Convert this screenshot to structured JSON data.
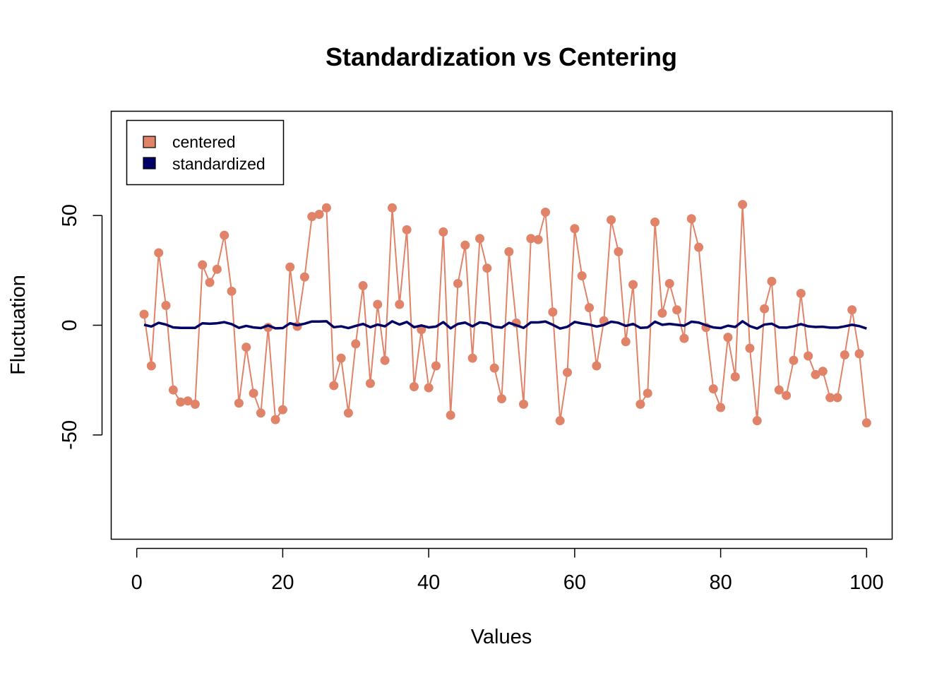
{
  "chart_data": {
    "type": "line",
    "title": "Standardization vs Centering",
    "xlabel": "Values",
    "ylabel": "Fluctuation",
    "xlim": [
      -3.5,
      103.5
    ],
    "ylim": [
      -97.5,
      97.5
    ],
    "x_ticks": [
      0,
      20,
      40,
      60,
      80,
      100
    ],
    "x_tick_labels": [
      "0",
      "20",
      "40",
      "60",
      "80",
      "100"
    ],
    "y_ticks": [
      -50,
      0,
      50
    ],
    "y_tick_labels": [
      "-50",
      "0",
      "50"
    ],
    "grid": false,
    "legend_position": "top-left",
    "legend": [
      {
        "label": "centered",
        "color": "#E08368"
      },
      {
        "label": "standardized",
        "color": "#000066"
      }
    ],
    "x": [
      1,
      2,
      3,
      4,
      5,
      6,
      7,
      8,
      9,
      10,
      11,
      12,
      13,
      14,
      15,
      16,
      17,
      18,
      19,
      20,
      21,
      22,
      23,
      24,
      25,
      26,
      27,
      28,
      29,
      30,
      31,
      32,
      33,
      34,
      35,
      36,
      37,
      38,
      39,
      40,
      41,
      42,
      43,
      44,
      45,
      46,
      47,
      48,
      49,
      50,
      51,
      52,
      53,
      54,
      55,
      56,
      57,
      58,
      59,
      60,
      61,
      62,
      63,
      64,
      65,
      66,
      67,
      68,
      69,
      70,
      71,
      72,
      73,
      74,
      75,
      76,
      77,
      78,
      79,
      80,
      81,
      82,
      83,
      84,
      85,
      86,
      87,
      88,
      89,
      90,
      91,
      92,
      93,
      94,
      95,
      96,
      97,
      98,
      99,
      100
    ],
    "series": [
      {
        "name": "centered",
        "color": "#E08368",
        "style": "line+points",
        "values": [
          5,
          -18.5,
          33,
          9,
          -29.5,
          -35,
          -34.5,
          -36,
          27.5,
          19.5,
          25.5,
          41,
          15.5,
          -35.5,
          -10,
          -31,
          -40,
          -1,
          -43,
          -38.5,
          26.5,
          -0.5,
          22,
          49.5,
          50.5,
          53.5,
          -27.5,
          -15,
          -40,
          -8.5,
          18,
          -26.5,
          9.5,
          -16,
          53.5,
          9.5,
          43.5,
          -28,
          -2,
          -28.5,
          -18.5,
          42.5,
          -41,
          19,
          36.5,
          -15,
          39.5,
          26,
          -19.5,
          -33.5,
          33.5,
          1,
          -36,
          39.5,
          39,
          51.5,
          6,
          -43.5,
          -21.5,
          44,
          22.5,
          8,
          -18.5,
          2,
          48,
          33.5,
          -7.5,
          18.5,
          -36,
          -31,
          47,
          5.5,
          19,
          7,
          -6,
          48.5,
          35.5,
          -1,
          -29,
          -37.5,
          -5.5,
          -23.5,
          55,
          -10.5,
          -43.5,
          7.5,
          20,
          -29.5,
          -32,
          -16,
          14.5,
          -14,
          -22.5,
          -21,
          -33,
          -33,
          -13.5,
          7,
          -13,
          -44.5
        ]
      },
      {
        "name": "standardized",
        "color": "#000066",
        "style": "line",
        "values": [
          0.2,
          -0.6,
          1.1,
          0.3,
          -1,
          -1.2,
          -1.2,
          -1.2,
          0.9,
          0.7,
          0.9,
          1.4,
          0.5,
          -1.2,
          -0.3,
          -1,
          -1.3,
          -0.1,
          -1.4,
          -1.3,
          0.9,
          0,
          0.7,
          1.7,
          1.7,
          1.8,
          -0.9,
          -0.5,
          -1.3,
          -0.3,
          0.6,
          -0.9,
          0.3,
          -0.5,
          1.8,
          0.3,
          1.5,
          -0.9,
          -0.1,
          -1,
          -0.6,
          1.4,
          -1.4,
          0.6,
          1.2,
          -0.5,
          1.3,
          0.9,
          -0.7,
          -1.1,
          1.1,
          0,
          -1.2,
          1.3,
          1.3,
          1.7,
          0.2,
          -1.5,
          -0.7,
          1.5,
          0.8,
          0.3,
          -0.6,
          0.1,
          1.6,
          1.1,
          -0.3,
          0.6,
          -1.2,
          -1,
          1.6,
          0.2,
          0.6,
          0.2,
          -0.2,
          1.6,
          1.2,
          0,
          -1,
          -1.3,
          -0.2,
          -0.8,
          1.8,
          -0.4,
          -1.5,
          0.3,
          0.7,
          -1,
          -1.1,
          -0.5,
          0.5,
          -0.5,
          -0.8,
          -0.7,
          -1.1,
          -1.1,
          -0.5,
          0.2,
          -0.4,
          -1.5
        ]
      }
    ]
  }
}
